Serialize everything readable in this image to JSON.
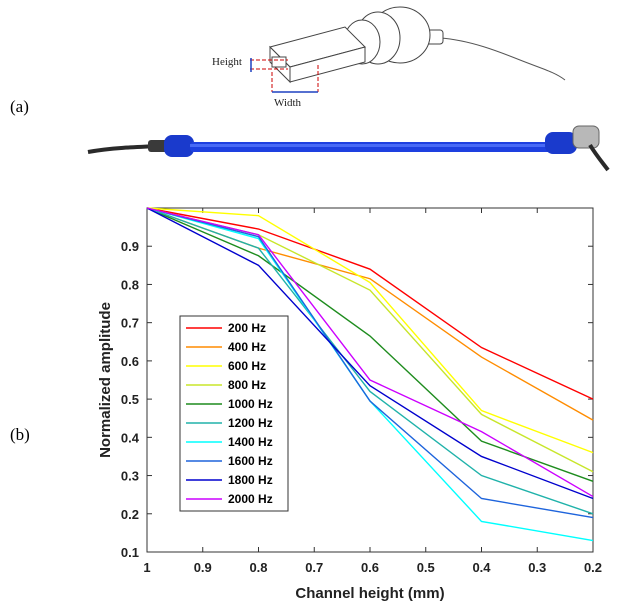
{
  "panels": {
    "a": "(a)",
    "b": "(b)"
  },
  "sketch": {
    "height_label": "Height",
    "width_label": "Width"
  },
  "chart_data": {
    "type": "line",
    "xlabel": "Channel height (mm)",
    "ylabel": "Normalized amplitude",
    "x_reversed": true,
    "xlim": [
      1,
      0.2
    ],
    "ylim": [
      0.1,
      1.0
    ],
    "xticks": [
      "1",
      "0.9",
      "0.8",
      "0.7",
      "0.6",
      "0.5",
      "0.4",
      "0.3",
      "0.2"
    ],
    "yticks": [
      "0.1",
      "0.2",
      "0.3",
      "0.4",
      "0.5",
      "0.6",
      "0.7",
      "0.8",
      "0.9"
    ],
    "x": [
      1,
      0.8,
      0.6,
      0.4,
      0.2
    ],
    "legend_position": "left",
    "series": [
      {
        "name": "200 Hz",
        "color": "#ff0000",
        "values": [
          1.0,
          0.945,
          0.84,
          0.635,
          0.5
        ]
      },
      {
        "name": "400 Hz",
        "color": "#ff8c00",
        "values": [
          1.0,
          0.895,
          0.815,
          0.61,
          0.445
        ]
      },
      {
        "name": "600 Hz",
        "color": "#ffff00",
        "values": [
          1.0,
          0.98,
          0.805,
          0.47,
          0.36
        ]
      },
      {
        "name": "800 Hz",
        "color": "#c8e62a",
        "values": [
          1.0,
          0.93,
          0.785,
          0.46,
          0.31
        ]
      },
      {
        "name": "1000 Hz",
        "color": "#1e8c1e",
        "values": [
          1.0,
          0.875,
          0.665,
          0.39,
          0.285
        ]
      },
      {
        "name": "1200 Hz",
        "color": "#20b2aa",
        "values": [
          1.0,
          0.895,
          0.52,
          0.3,
          0.2
        ]
      },
      {
        "name": "1400 Hz",
        "color": "#00ffff",
        "values": [
          1.0,
          0.92,
          0.495,
          0.18,
          0.13
        ]
      },
      {
        "name": "1600 Hz",
        "color": "#1e64dc",
        "values": [
          1.0,
          0.925,
          0.495,
          0.24,
          0.19
        ]
      },
      {
        "name": "1800 Hz",
        "color": "#0000cd",
        "values": [
          1.0,
          0.85,
          0.535,
          0.35,
          0.24
        ]
      },
      {
        "name": "2000 Hz",
        "color": "#cc00ff",
        "values": [
          1.0,
          0.93,
          0.55,
          0.415,
          0.245
        ]
      }
    ]
  }
}
